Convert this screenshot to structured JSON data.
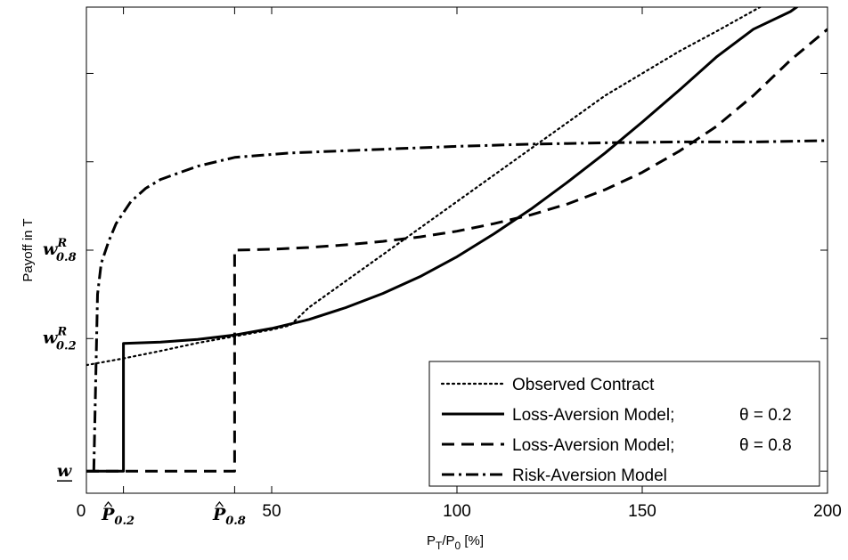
{
  "chart_data": {
    "type": "line",
    "xlabel": "P",
    "xlabel_sub1": "T",
    "xlabel_mid": "/P",
    "xlabel_sub2": "0",
    "xlabel_unit": " [%]",
    "ylabel": "Payoff in T",
    "xlim": [
      0,
      200
    ],
    "ylim": [
      -0.05,
      1.05
    ],
    "x_ticks": [
      {
        "value": 0,
        "label": "0"
      },
      {
        "value": 50,
        "label": "50"
      },
      {
        "value": 100,
        "label": "100"
      },
      {
        "value": 150,
        "label": "150"
      },
      {
        "value": 200,
        "label": "200"
      }
    ],
    "x_special_ticks": [
      {
        "value": 10,
        "base": "P",
        "sub": "0.2"
      },
      {
        "value": 40,
        "base": "P",
        "sub": "0.8"
      }
    ],
    "y_special_ticks": [
      {
        "value": 0,
        "label": "w",
        "underline": true
      },
      {
        "value": 0.3,
        "base": "w",
        "sub": "0.2",
        "sup": "R"
      },
      {
        "value": 0.5,
        "base": "w",
        "sub": "0.8",
        "sup": "R"
      }
    ],
    "y_minor_ticks": [
      0.7,
      0.9
    ],
    "series": [
      {
        "name": "Observed Contract",
        "style": "dotted",
        "points": [
          [
            0,
            0.24
          ],
          [
            10,
            0.255
          ],
          [
            20,
            0.272
          ],
          [
            30,
            0.29
          ],
          [
            40,
            0.305
          ],
          [
            50,
            0.32
          ],
          [
            55,
            0.33
          ],
          [
            60,
            0.37
          ],
          [
            70,
            0.43
          ],
          [
            80,
            0.49
          ],
          [
            90,
            0.55
          ],
          [
            100,
            0.61
          ],
          [
            110,
            0.67
          ],
          [
            120,
            0.73
          ],
          [
            130,
            0.79
          ],
          [
            140,
            0.85
          ],
          [
            150,
            0.9
          ],
          [
            160,
            0.95
          ],
          [
            170,
            0.995
          ],
          [
            200,
            1.135
          ]
        ]
      },
      {
        "name": "Loss-Aversion Model;",
        "theta": "θ = 0.2",
        "style": "solid",
        "points": [
          [
            0,
            0.0
          ],
          [
            10,
            0.0
          ],
          [
            10,
            0.289
          ],
          [
            20,
            0.292
          ],
          [
            30,
            0.298
          ],
          [
            40,
            0.308
          ],
          [
            50,
            0.323
          ],
          [
            60,
            0.343
          ],
          [
            70,
            0.37
          ],
          [
            80,
            0.402
          ],
          [
            90,
            0.44
          ],
          [
            100,
            0.485
          ],
          [
            110,
            0.537
          ],
          [
            120,
            0.593
          ],
          [
            130,
            0.655
          ],
          [
            140,
            0.72
          ],
          [
            150,
            0.79
          ],
          [
            160,
            0.862
          ],
          [
            170,
            0.937
          ],
          [
            180,
            1.0
          ],
          [
            190,
            1.04
          ],
          [
            200,
            1.1
          ]
        ]
      },
      {
        "name": "Loss-Aversion Model;",
        "theta": "θ = 0.8",
        "style": "dashed",
        "points": [
          [
            0,
            0.0
          ],
          [
            40,
            0.0
          ],
          [
            40,
            0.5
          ],
          [
            50,
            0.502
          ],
          [
            60,
            0.506
          ],
          [
            70,
            0.512
          ],
          [
            80,
            0.52
          ],
          [
            90,
            0.53
          ],
          [
            100,
            0.543
          ],
          [
            110,
            0.56
          ],
          [
            120,
            0.58
          ],
          [
            130,
            0.605
          ],
          [
            140,
            0.637
          ],
          [
            150,
            0.676
          ],
          [
            160,
            0.724
          ],
          [
            170,
            0.78
          ],
          [
            180,
            0.85
          ],
          [
            190,
            0.93
          ],
          [
            200,
            1.0
          ]
        ]
      },
      {
        "name": "Risk-Aversion Model",
        "style": "dashdot",
        "points": [
          [
            2,
            0.0
          ],
          [
            3,
            0.4
          ],
          [
            4,
            0.47
          ],
          [
            6,
            0.52
          ],
          [
            8,
            0.56
          ],
          [
            12,
            0.61
          ],
          [
            16,
            0.64
          ],
          [
            20,
            0.66
          ],
          [
            30,
            0.69
          ],
          [
            40,
            0.71
          ],
          [
            55,
            0.72
          ],
          [
            70,
            0.725
          ],
          [
            85,
            0.73
          ],
          [
            100,
            0.735
          ],
          [
            120,
            0.74
          ],
          [
            140,
            0.743
          ],
          [
            160,
            0.745
          ],
          [
            180,
            0.745
          ],
          [
            200,
            0.748
          ]
        ]
      }
    ],
    "legend_position": "bottom-right"
  }
}
